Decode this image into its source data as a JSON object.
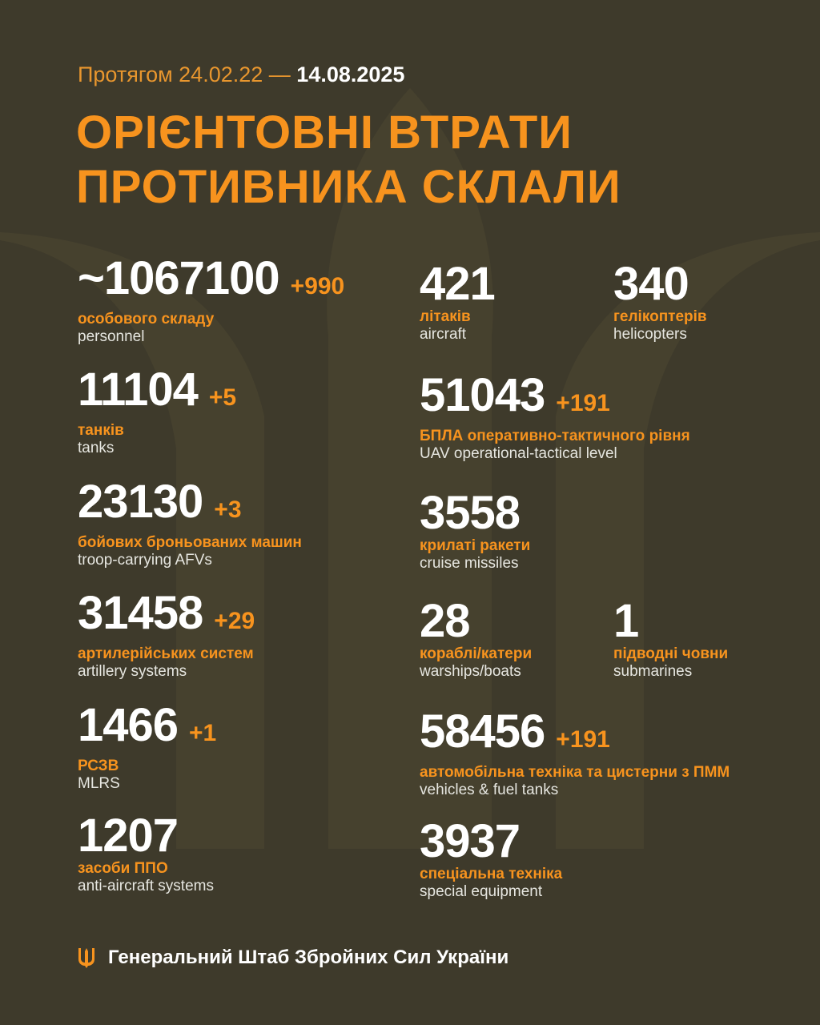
{
  "header": {
    "period_prefix": "Протягом 24.02.22 —",
    "period_date": "14.08.2025",
    "title_line1": "ОРІЄНТОВНІ ВТРАТИ",
    "title_line2": "ПРОТИВНИКА СКЛАЛИ"
  },
  "stats": {
    "personnel": {
      "value": "~1067100",
      "delta": "+990",
      "ua": "особового складу",
      "en": "personnel"
    },
    "tanks": {
      "value": "11104",
      "delta": "+5",
      "ua": "танків",
      "en": "tanks"
    },
    "afv": {
      "value": "23130",
      "delta": "+3",
      "ua": "бойових броньованих машин",
      "en": "troop-carrying AFVs"
    },
    "artillery": {
      "value": "31458",
      "delta": "+29",
      "ua": "артилерійських систем",
      "en": "artillery systems"
    },
    "mlrs": {
      "value": "1466",
      "delta": "+1",
      "ua": "РСЗВ",
      "en": "MLRS"
    },
    "air_defense": {
      "value": "1207",
      "ua": "засоби ППО",
      "en": "anti-aircraft systems"
    },
    "aircraft": {
      "value": "421",
      "ua": "літаків",
      "en": "aircraft"
    },
    "helicopters": {
      "value": "340",
      "ua": "гелікоптерів",
      "en": "helicopters"
    },
    "uav": {
      "value": "51043",
      "delta": "+191",
      "ua": "БПЛА оперативно-тактичного рівня",
      "en": "UAV operational-tactical level"
    },
    "cruise_missiles": {
      "value": "3558",
      "ua": "крилаті ракети",
      "en": "cruise missiles"
    },
    "warships": {
      "value": "28",
      "ua": "кораблі/катери",
      "en": "warships/boats"
    },
    "submarines": {
      "value": "1",
      "ua": "підводні човни",
      "en": "submarines"
    },
    "vehicles": {
      "value": "58456",
      "delta": "+191",
      "ua": "автомобільна техніка та цистерни з ПММ",
      "en": "vehicles & fuel tanks"
    },
    "special_equipment": {
      "value": "3937",
      "ua": "спеціальна техніка",
      "en": "special equipment"
    }
  },
  "footer": {
    "text": "Генеральний Штаб Збройних Сил України",
    "icon": "trident-icon"
  },
  "colors": {
    "background": "#3e3a2b",
    "accent": "#f7931e",
    "text": "#ffffff"
  }
}
